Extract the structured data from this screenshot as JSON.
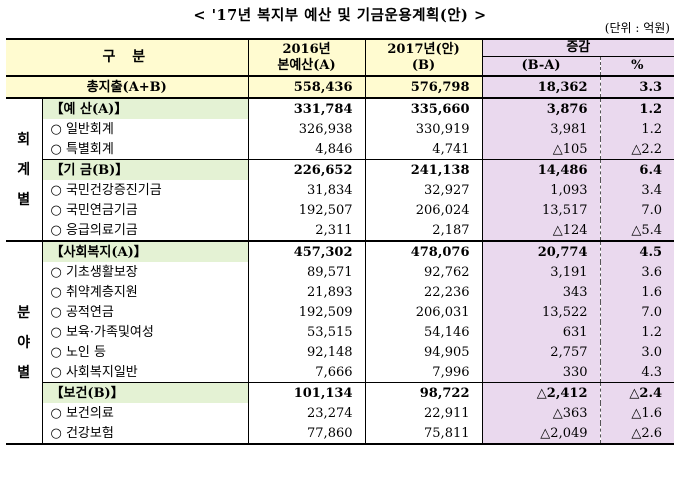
{
  "title": "< '17년 복지부 예산 및 기금운용계획(안) >",
  "unit": "(단위 : 억원)",
  "header": {
    "col_category": "구   분",
    "col_2016_line1": "2016년",
    "col_2016_line2": "본예산(A)",
    "col_2017_line1": "2017년(안)",
    "col_2017_line2": "(B)",
    "col_change_line1": "증감",
    "col_change_line2": "(B-A)",
    "col_percent": "%"
  },
  "total": {
    "label": "총지출(A+B)",
    "v2016": "558,436",
    "v2017": "576,798",
    "diff": "18,362",
    "pct": "3.3"
  },
  "groups": [
    {
      "side": [
        "회",
        "계",
        "별"
      ],
      "rows": [
        {
          "label": "【예  산(A)】",
          "v2016": "331,784",
          "v2017": "335,660",
          "diff": "3,876",
          "pct": "1.2",
          "section": true
        },
        {
          "label": "○ 일반회계",
          "v2016": "326,938",
          "v2017": "330,919",
          "diff": "3,981",
          "pct": "1.2"
        },
        {
          "label": "○ 특별회계",
          "v2016": "4,846",
          "v2017": "4,741",
          "diff": "△105",
          "pct": "△2.2"
        },
        {
          "label": "【기  금(B)】",
          "v2016": "226,652",
          "v2017": "241,138",
          "diff": "14,486",
          "pct": "6.4",
          "section": true
        },
        {
          "label": "○ 국민건강증진기금",
          "v2016": "31,834",
          "v2017": "32,927",
          "diff": "1,093",
          "pct": "3.4"
        },
        {
          "label": "○ 국민연금기금",
          "v2016": "192,507",
          "v2017": "206,024",
          "diff": "13,517",
          "pct": "7.0"
        },
        {
          "label": "○ 응급의료기금",
          "v2016": "2,311",
          "v2017": "2,187",
          "diff": "△124",
          "pct": "△5.4"
        }
      ]
    },
    {
      "side": [
        "분",
        "야",
        "별"
      ],
      "rows": [
        {
          "label": "【사회복지(A)】",
          "v2016": "457,302",
          "v2017": "478,076",
          "diff": "20,774",
          "pct": "4.5",
          "section": true
        },
        {
          "label": "○ 기초생활보장",
          "v2016": "89,571",
          "v2017": "92,762",
          "diff": "3,191",
          "pct": "3.6"
        },
        {
          "label": "○ 취약계층지원",
          "v2016": "21,893",
          "v2017": "22,236",
          "diff": "343",
          "pct": "1.6"
        },
        {
          "label": "○ 공적연금",
          "v2016": "192,509",
          "v2017": "206,031",
          "diff": "13,522",
          "pct": "7.0"
        },
        {
          "label": "○ 보육·가족및여성",
          "v2016": "53,515",
          "v2017": "54,146",
          "diff": "631",
          "pct": "1.2"
        },
        {
          "label": "○ 노인 등",
          "v2016": "92,148",
          "v2017": "94,905",
          "diff": "2,757",
          "pct": "3.0"
        },
        {
          "label": "○ 사회복지일반",
          "v2016": "7,666",
          "v2017": "7,996",
          "diff": "330",
          "pct": "4.3"
        },
        {
          "label": "【보건(B)】",
          "v2016": "101,134",
          "v2017": "98,722",
          "diff": "△2,412",
          "pct": "△2.4",
          "section": true
        },
        {
          "label": "○ 보건의료",
          "v2016": "23,274",
          "v2017": "22,911",
          "diff": "△363",
          "pct": "△1.6"
        },
        {
          "label": "○ 건강보험",
          "v2016": "77,860",
          "v2017": "75,811",
          "diff": "△2,049",
          "pct": "△2.6"
        }
      ]
    }
  ],
  "colors": {
    "yellow": "#fffbd0",
    "purple": "#ead9ee",
    "section_green": "#e4f2d4"
  }
}
